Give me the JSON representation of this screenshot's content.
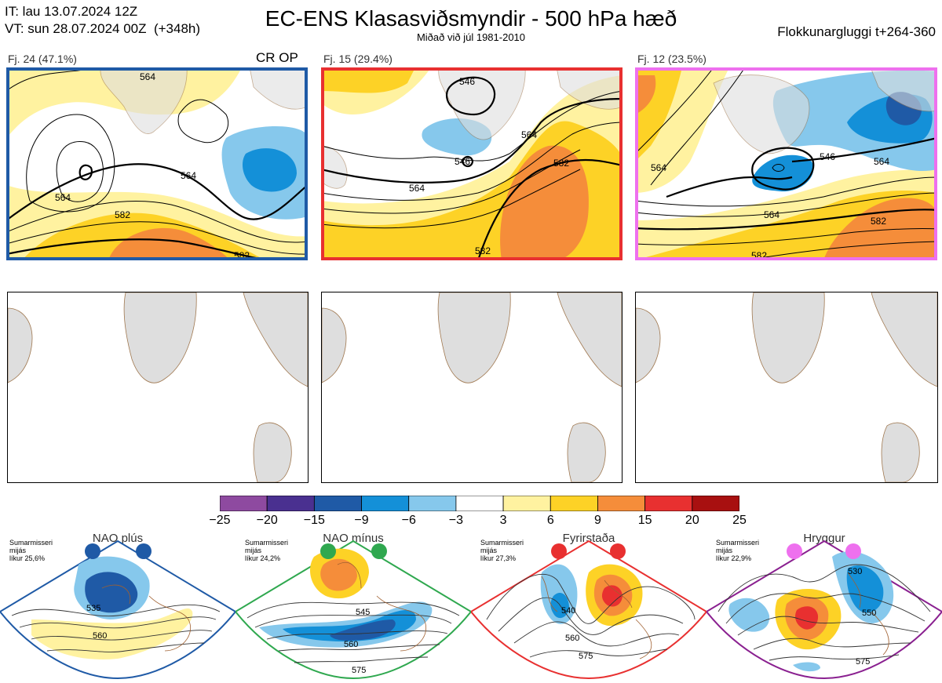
{
  "header": {
    "it_line": "IT: lau 13.07.2024 12Z",
    "vt_line": "VT: sun 28.07.2024 00Z  (+348h)",
    "title": "EC-ENS Klasasviðsmyndir - 500 hPa hæð",
    "subtitle": "Miðað við júl 1981-2010",
    "window": "Flokkunargluggi t+264-360"
  },
  "clusters": [
    {
      "label": "Fj. 24 (47.1%)",
      "tag": "CR OP",
      "frame_color": "#1f5aa6",
      "contour_labels": [
        "564",
        "564",
        "564",
        "582",
        "582"
      ]
    },
    {
      "label": "Fj. 15 (29.4%)",
      "tag": "",
      "frame_color": "#e83030",
      "contour_labels": [
        "546",
        "546",
        "564",
        "564",
        "582",
        "582"
      ]
    },
    {
      "label": "Fj. 12 (23.5%)",
      "tag": "",
      "frame_color": "#ee70ee",
      "contour_labels": [
        "546",
        "564",
        "564",
        "564",
        "582",
        "582"
      ]
    }
  ],
  "colorbar": {
    "ticks": [
      "−25",
      "−20",
      "−15",
      "−9",
      "−6",
      "−3",
      "3",
      "6",
      "9",
      "15",
      "20",
      "25"
    ],
    "colors": [
      "#8e4aa0",
      "#4a3090",
      "#1f5aa6",
      "#1490d8",
      "#86c8ec",
      "#ffffff",
      "#fff2a0",
      "#fdd226",
      "#f58d3a",
      "#e83030",
      "#a81010"
    ]
  },
  "regimes": [
    {
      "name": "NAO plús",
      "info": [
        "Sumarmisseri",
        "mijás",
        "líkur 25,6%"
      ],
      "dot_color": "#1f5aa6",
      "frame_color": "#1f5aa6",
      "labels": [
        "535",
        "560"
      ]
    },
    {
      "name": "NAO mínus",
      "info": [
        "Sumarmisseri",
        "mijás",
        "líkur 24,2%"
      ],
      "dot_color": "#2fa84f",
      "frame_color": "#2fa84f",
      "labels": [
        "545",
        "560",
        "575"
      ]
    },
    {
      "name": "Fyrirstaða",
      "info": [
        "Sumarmisseri",
        "mijás",
        "líkur 27,3%"
      ],
      "dot_color": "#e83030",
      "frame_color": "#e83030",
      "labels": [
        "540",
        "560",
        "575"
      ]
    },
    {
      "name": "Hryggur",
      "info": [
        "Sumarmisseri",
        "mijás",
        "líkur 22,9%"
      ],
      "dot_color": "#ee70ee",
      "frame_color": "#8a2090",
      "labels": [
        "530",
        "550",
        "575"
      ]
    }
  ]
}
